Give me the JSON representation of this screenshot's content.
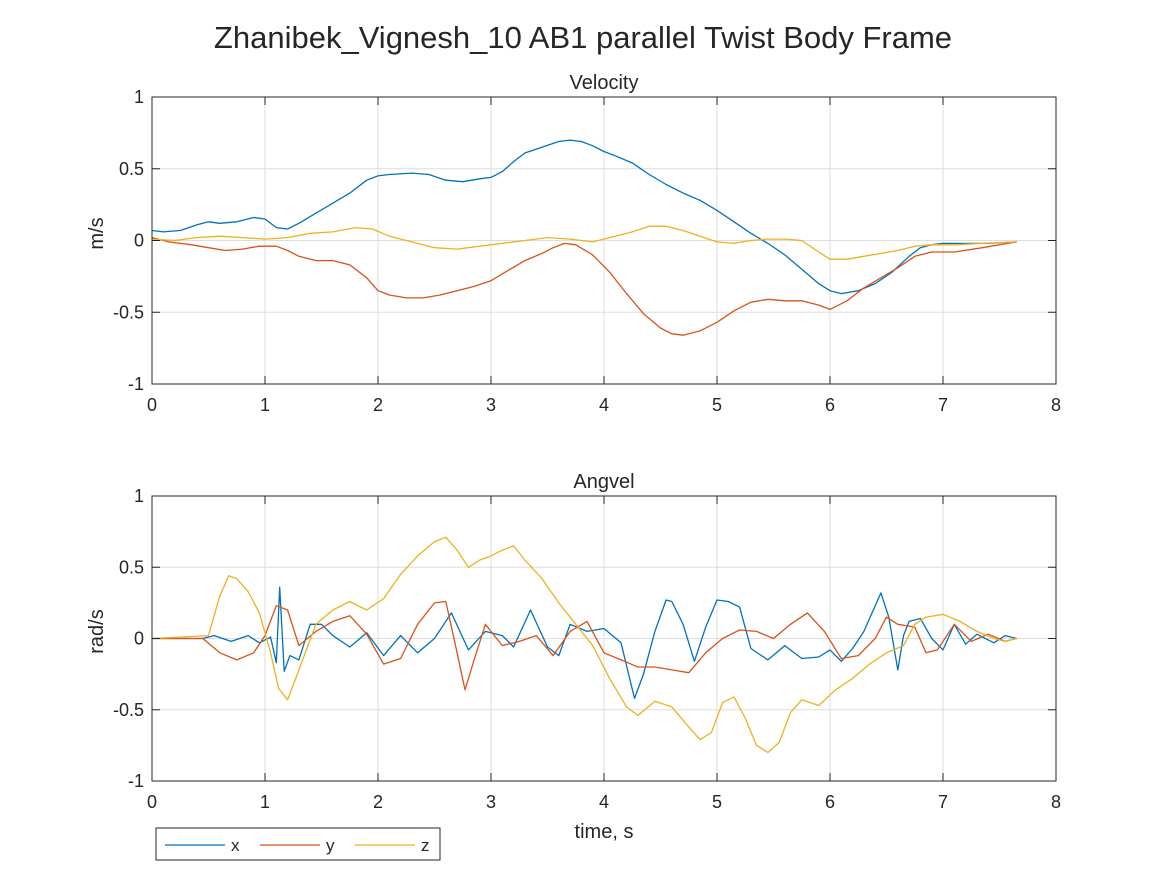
{
  "figure": {
    "title": "Zhanibek_Vignesh_10 AB1 parallel Twist Body Frame"
  },
  "colors": {
    "x": "#0072BD",
    "y": "#D95319",
    "z": "#EDB120"
  },
  "legend": {
    "placement": "bottom-left-outside",
    "entries": [
      "x",
      "y",
      "z"
    ]
  },
  "chart_data": [
    {
      "type": "line",
      "title": "Velocity",
      "xlabel": "",
      "ylabel": "m/s",
      "xlim": [
        0,
        8
      ],
      "ylim": [
        -1,
        1
      ],
      "xticks": [
        "0",
        "1",
        "2",
        "3",
        "4",
        "5",
        "6",
        "7",
        "8"
      ],
      "yticks": [
        "1",
        "0.5",
        "0",
        "-0.5",
        "-1"
      ],
      "grid": true,
      "series": [
        {
          "name": "x",
          "x": [
            0,
            0.1,
            0.25,
            0.4,
            0.5,
            0.6,
            0.75,
            0.9,
            1.0,
            1.1,
            1.2,
            1.3,
            1.45,
            1.6,
            1.75,
            1.9,
            2.0,
            2.1,
            2.3,
            2.45,
            2.6,
            2.75,
            2.9,
            3.0,
            3.1,
            3.2,
            3.3,
            3.45,
            3.6,
            3.7,
            3.8,
            3.9,
            4.0,
            4.1,
            4.25,
            4.4,
            4.55,
            4.7,
            4.85,
            5.0,
            5.15,
            5.3,
            5.45,
            5.6,
            5.75,
            5.9,
            6.0,
            6.1,
            6.25,
            6.4,
            6.55,
            6.7,
            6.8,
            6.9,
            7.0,
            7.2,
            7.4,
            7.65
          ],
          "values": [
            0.07,
            0.06,
            0.07,
            0.11,
            0.13,
            0.12,
            0.13,
            0.16,
            0.15,
            0.09,
            0.08,
            0.12,
            0.19,
            0.26,
            0.33,
            0.42,
            0.45,
            0.46,
            0.47,
            0.46,
            0.42,
            0.41,
            0.43,
            0.44,
            0.48,
            0.55,
            0.61,
            0.65,
            0.69,
            0.7,
            0.69,
            0.66,
            0.62,
            0.59,
            0.54,
            0.46,
            0.39,
            0.33,
            0.28,
            0.21,
            0.13,
            0.05,
            -0.02,
            -0.1,
            -0.2,
            -0.3,
            -0.35,
            -0.37,
            -0.35,
            -0.3,
            -0.22,
            -0.11,
            -0.05,
            -0.03,
            -0.02,
            -0.02,
            -0.02,
            -0.01
          ]
        },
        {
          "name": "y",
          "x": [
            0,
            0.15,
            0.35,
            0.5,
            0.65,
            0.8,
            0.95,
            1.1,
            1.2,
            1.3,
            1.45,
            1.6,
            1.75,
            1.9,
            2.0,
            2.1,
            2.25,
            2.4,
            2.55,
            2.7,
            2.85,
            3.0,
            3.15,
            3.3,
            3.45,
            3.55,
            3.65,
            3.75,
            3.9,
            4.05,
            4.2,
            4.35,
            4.5,
            4.6,
            4.7,
            4.85,
            5.0,
            5.15,
            5.3,
            5.45,
            5.6,
            5.75,
            5.9,
            6.0,
            6.15,
            6.3,
            6.45,
            6.6,
            6.75,
            6.9,
            7.1,
            7.35,
            7.65
          ],
          "values": [
            0.02,
            -0.01,
            -0.03,
            -0.05,
            -0.07,
            -0.06,
            -0.04,
            -0.04,
            -0.07,
            -0.11,
            -0.14,
            -0.14,
            -0.17,
            -0.26,
            -0.35,
            -0.38,
            -0.4,
            -0.4,
            -0.38,
            -0.35,
            -0.32,
            -0.28,
            -0.21,
            -0.14,
            -0.09,
            -0.05,
            -0.02,
            -0.03,
            -0.1,
            -0.22,
            -0.37,
            -0.51,
            -0.61,
            -0.65,
            -0.66,
            -0.63,
            -0.57,
            -0.49,
            -0.43,
            -0.41,
            -0.42,
            -0.42,
            -0.45,
            -0.48,
            -0.42,
            -0.33,
            -0.26,
            -0.19,
            -0.11,
            -0.08,
            -0.08,
            -0.05,
            -0.01
          ]
        },
        {
          "name": "z",
          "x": [
            0,
            0.2,
            0.4,
            0.6,
            0.8,
            1.0,
            1.2,
            1.4,
            1.6,
            1.8,
            1.95,
            2.1,
            2.3,
            2.5,
            2.7,
            2.9,
            3.1,
            3.3,
            3.5,
            3.7,
            3.9,
            4.1,
            4.25,
            4.4,
            4.55,
            4.7,
            4.85,
            5.0,
            5.15,
            5.3,
            5.45,
            5.6,
            5.75,
            5.9,
            6.0,
            6.15,
            6.3,
            6.45,
            6.6,
            6.75,
            6.9,
            7.1,
            7.35,
            7.65
          ],
          "values": [
            0.01,
            0.0,
            0.02,
            0.03,
            0.02,
            0.01,
            0.02,
            0.05,
            0.06,
            0.09,
            0.08,
            0.03,
            -0.01,
            -0.05,
            -0.06,
            -0.04,
            -0.02,
            0.0,
            0.02,
            0.01,
            -0.01,
            0.03,
            0.06,
            0.1,
            0.1,
            0.07,
            0.03,
            -0.01,
            -0.02,
            0.0,
            0.01,
            0.01,
            0.0,
            -0.08,
            -0.13,
            -0.13,
            -0.11,
            -0.09,
            -0.07,
            -0.04,
            -0.03,
            -0.03,
            -0.02,
            -0.01
          ]
        }
      ]
    },
    {
      "type": "line",
      "title": "Angvel",
      "xlabel": "time, s",
      "ylabel": "rad/s",
      "xlim": [
        0,
        8
      ],
      "ylim": [
        -1,
        1
      ],
      "xticks": [
        "0",
        "1",
        "2",
        "3",
        "4",
        "5",
        "6",
        "7",
        "8"
      ],
      "yticks": [
        "1",
        "0.5",
        "0",
        "-0.5",
        "-1"
      ],
      "grid": true,
      "series": [
        {
          "name": "x",
          "x": [
            0,
            0.45,
            0.55,
            0.7,
            0.85,
            0.95,
            1.05,
            1.1,
            1.13,
            1.17,
            1.22,
            1.3,
            1.4,
            1.5,
            1.6,
            1.75,
            1.9,
            2.05,
            2.2,
            2.35,
            2.5,
            2.65,
            2.8,
            2.95,
            3.1,
            3.2,
            3.35,
            3.5,
            3.6,
            3.7,
            3.85,
            4.0,
            4.15,
            4.27,
            4.35,
            4.45,
            4.55,
            4.6,
            4.7,
            4.8,
            4.9,
            5.0,
            5.1,
            5.2,
            5.3,
            5.45,
            5.6,
            5.75,
            5.9,
            6.0,
            6.1,
            6.2,
            6.3,
            6.45,
            6.52,
            6.6,
            6.65,
            6.7,
            6.8,
            6.9,
            7.0,
            7.1,
            7.2,
            7.3,
            7.45,
            7.55,
            7.65
          ],
          "values": [
            0.0,
            0.0,
            0.02,
            -0.02,
            0.02,
            -0.03,
            0.01,
            -0.17,
            0.36,
            -0.23,
            -0.12,
            -0.15,
            0.1,
            0.1,
            0.02,
            -0.06,
            0.04,
            -0.12,
            0.02,
            -0.1,
            0.0,
            0.18,
            -0.08,
            0.05,
            0.02,
            -0.06,
            0.2,
            -0.06,
            -0.12,
            0.1,
            0.05,
            0.07,
            -0.03,
            -0.42,
            -0.25,
            0.05,
            0.27,
            0.26,
            0.1,
            -0.16,
            0.08,
            0.27,
            0.26,
            0.22,
            -0.07,
            -0.15,
            -0.05,
            -0.14,
            -0.13,
            -0.08,
            -0.16,
            -0.07,
            0.05,
            0.32,
            0.15,
            -0.22,
            0.02,
            0.12,
            0.14,
            0.0,
            -0.08,
            0.1,
            -0.04,
            0.03,
            -0.03,
            0.02,
            0.0
          ]
        },
        {
          "name": "y",
          "x": [
            0,
            0.45,
            0.6,
            0.75,
            0.9,
            1.0,
            1.1,
            1.2,
            1.3,
            1.45,
            1.6,
            1.75,
            1.9,
            2.05,
            2.2,
            2.35,
            2.5,
            2.6,
            2.7,
            2.77,
            2.85,
            2.95,
            3.1,
            3.25,
            3.4,
            3.55,
            3.7,
            3.85,
            4.0,
            4.15,
            4.3,
            4.45,
            4.6,
            4.75,
            4.9,
            5.05,
            5.2,
            5.35,
            5.5,
            5.65,
            5.8,
            5.95,
            6.1,
            6.25,
            6.4,
            6.5,
            6.6,
            6.75,
            6.85,
            6.95,
            7.1,
            7.25,
            7.4,
            7.55,
            7.65
          ],
          "values": [
            0.0,
            0.0,
            -0.1,
            -0.15,
            -0.1,
            0.02,
            0.23,
            0.2,
            -0.05,
            0.05,
            0.12,
            0.16,
            0.03,
            -0.18,
            -0.14,
            0.1,
            0.25,
            0.26,
            -0.1,
            -0.36,
            -0.15,
            0.1,
            -0.05,
            -0.02,
            0.02,
            -0.12,
            0.05,
            0.12,
            -0.1,
            -0.15,
            -0.2,
            -0.2,
            -0.22,
            -0.24,
            -0.1,
            0.0,
            0.06,
            0.05,
            0.0,
            0.1,
            0.18,
            0.05,
            -0.14,
            -0.12,
            0.0,
            0.15,
            0.1,
            0.08,
            -0.1,
            -0.08,
            0.1,
            -0.02,
            0.03,
            -0.02,
            0.0
          ]
        },
        {
          "name": "z",
          "x": [
            0,
            0.5,
            0.6,
            0.68,
            0.75,
            0.85,
            0.95,
            1.05,
            1.12,
            1.2,
            1.3,
            1.45,
            1.6,
            1.75,
            1.9,
            2.05,
            2.2,
            2.35,
            2.5,
            2.6,
            2.7,
            2.8,
            2.9,
            3.0,
            3.1,
            3.2,
            3.3,
            3.45,
            3.6,
            3.75,
            3.9,
            4.05,
            4.2,
            4.3,
            4.45,
            4.6,
            4.75,
            4.85,
            4.95,
            5.05,
            5.15,
            5.25,
            5.35,
            5.45,
            5.55,
            5.65,
            5.75,
            5.9,
            6.05,
            6.2,
            6.35,
            6.5,
            6.65,
            6.75,
            6.85,
            7.0,
            7.15,
            7.3,
            7.45,
            7.55,
            7.65
          ],
          "values": [
            0.0,
            0.02,
            0.3,
            0.44,
            0.42,
            0.33,
            0.18,
            -0.1,
            -0.35,
            -0.43,
            -0.22,
            0.1,
            0.2,
            0.26,
            0.2,
            0.28,
            0.45,
            0.58,
            0.68,
            0.71,
            0.62,
            0.5,
            0.55,
            0.58,
            0.62,
            0.65,
            0.55,
            0.42,
            0.25,
            0.1,
            -0.05,
            -0.28,
            -0.48,
            -0.54,
            -0.44,
            -0.48,
            -0.62,
            -0.71,
            -0.66,
            -0.45,
            -0.41,
            -0.56,
            -0.75,
            -0.8,
            -0.73,
            -0.52,
            -0.43,
            -0.47,
            -0.36,
            -0.28,
            -0.18,
            -0.1,
            -0.05,
            0.1,
            0.15,
            0.17,
            0.12,
            0.05,
            0.0,
            -0.02,
            0.0
          ]
        }
      ]
    }
  ]
}
